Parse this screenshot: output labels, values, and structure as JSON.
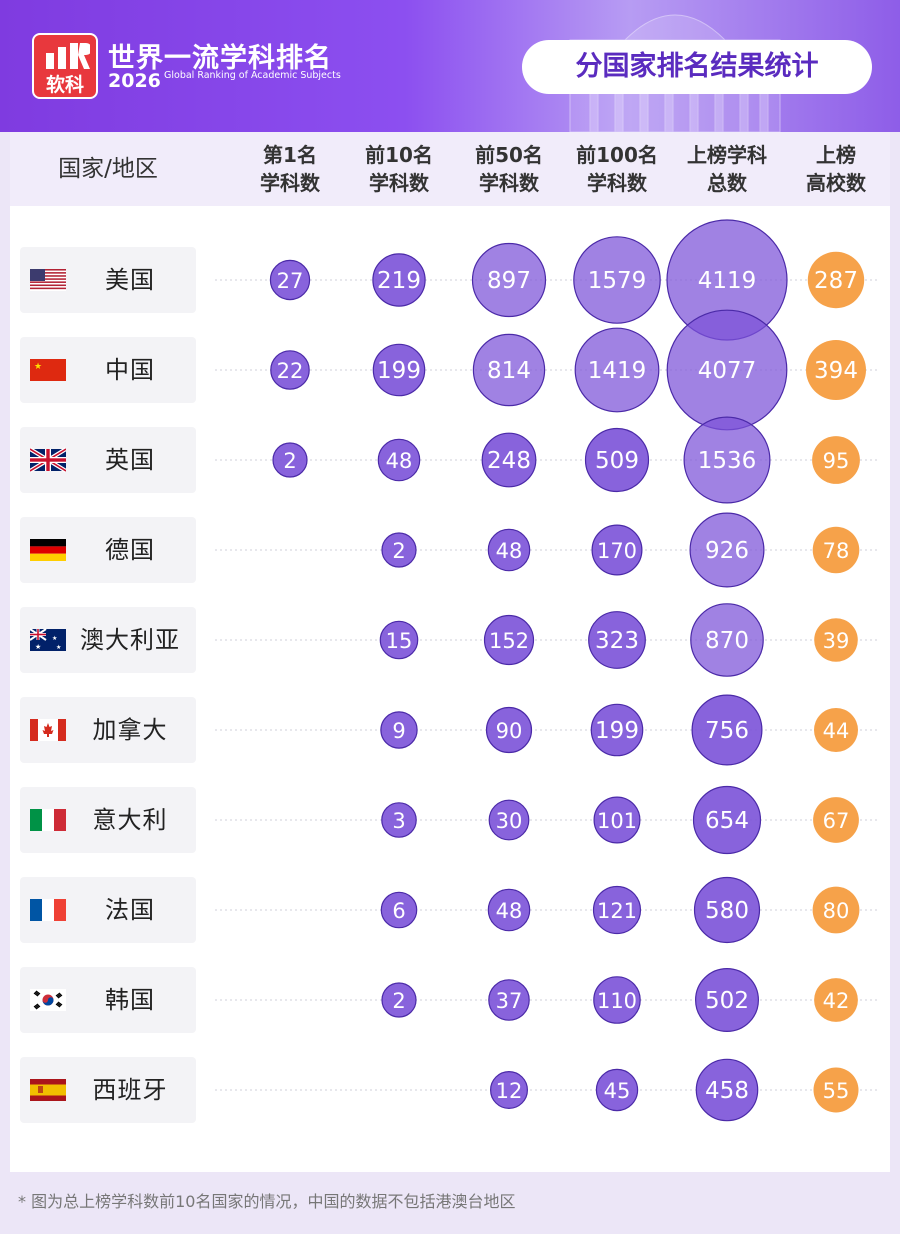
{
  "header": {
    "logo_text": "软科",
    "title": "世界一流学科排名",
    "year": "2026",
    "subtitle": "Global Ranking of Academic Subjects",
    "badge": "分国家排名结果统计"
  },
  "colors": {
    "purple": "#7b52d8",
    "purple_light": "#8f6ae3",
    "orange": "#f6a24a",
    "brand_red": "#e8383d"
  },
  "chart_data": {
    "type": "table",
    "columns": [
      {
        "key": "country",
        "label": "国家/地区"
      },
      {
        "key": "first",
        "label": "第1名\n学科数"
      },
      {
        "key": "top10",
        "label": "前10名\n学科数"
      },
      {
        "key": "top50",
        "label": "前50名\n学科数"
      },
      {
        "key": "top100",
        "label": "前100名\n学科数"
      },
      {
        "key": "total",
        "label": "上榜学科\n总数"
      },
      {
        "key": "schools",
        "label": "上榜\n高校数"
      }
    ],
    "rows": [
      {
        "country": "美国",
        "flag": "us-flag-icon",
        "first": 27,
        "top10": 219,
        "top50": 897,
        "top100": 1579,
        "total": 4119,
        "schools": 287
      },
      {
        "country": "中国",
        "flag": "cn-flag-icon",
        "first": 22,
        "top10": 199,
        "top50": 814,
        "top100": 1419,
        "total": 4077,
        "schools": 394
      },
      {
        "country": "英国",
        "flag": "uk-flag-icon",
        "first": 2,
        "top10": 48,
        "top50": 248,
        "top100": 509,
        "total": 1536,
        "schools": 95
      },
      {
        "country": "德国",
        "flag": "de-flag-icon",
        "first": null,
        "top10": 2,
        "top50": 48,
        "top100": 170,
        "total": 926,
        "schools": 78
      },
      {
        "country": "澳大利亚",
        "flag": "au-flag-icon",
        "first": null,
        "top10": 15,
        "top50": 152,
        "top100": 323,
        "total": 870,
        "schools": 39
      },
      {
        "country": "加拿大",
        "flag": "ca-flag-icon",
        "first": null,
        "top10": 9,
        "top50": 90,
        "top100": 199,
        "total": 756,
        "schools": 44
      },
      {
        "country": "意大利",
        "flag": "it-flag-icon",
        "first": null,
        "top10": 3,
        "top50": 30,
        "top100": 101,
        "total": 654,
        "schools": 67
      },
      {
        "country": "法国",
        "flag": "fr-flag-icon",
        "first": null,
        "top10": 6,
        "top50": 48,
        "top100": 121,
        "total": 580,
        "schools": 80
      },
      {
        "country": "韩国",
        "flag": "kr-flag-icon",
        "first": null,
        "top10": 2,
        "top50": 37,
        "top100": 110,
        "total": 502,
        "schools": 42
      },
      {
        "country": "西班牙",
        "flag": "es-flag-icon",
        "first": null,
        "top10": null,
        "top50": 12,
        "top100": 45,
        "total": 458,
        "schools": 55
      }
    ]
  },
  "footnote": "* 图为总上榜学科数前10名国家的情况，中国的数据不包括港澳台地区"
}
